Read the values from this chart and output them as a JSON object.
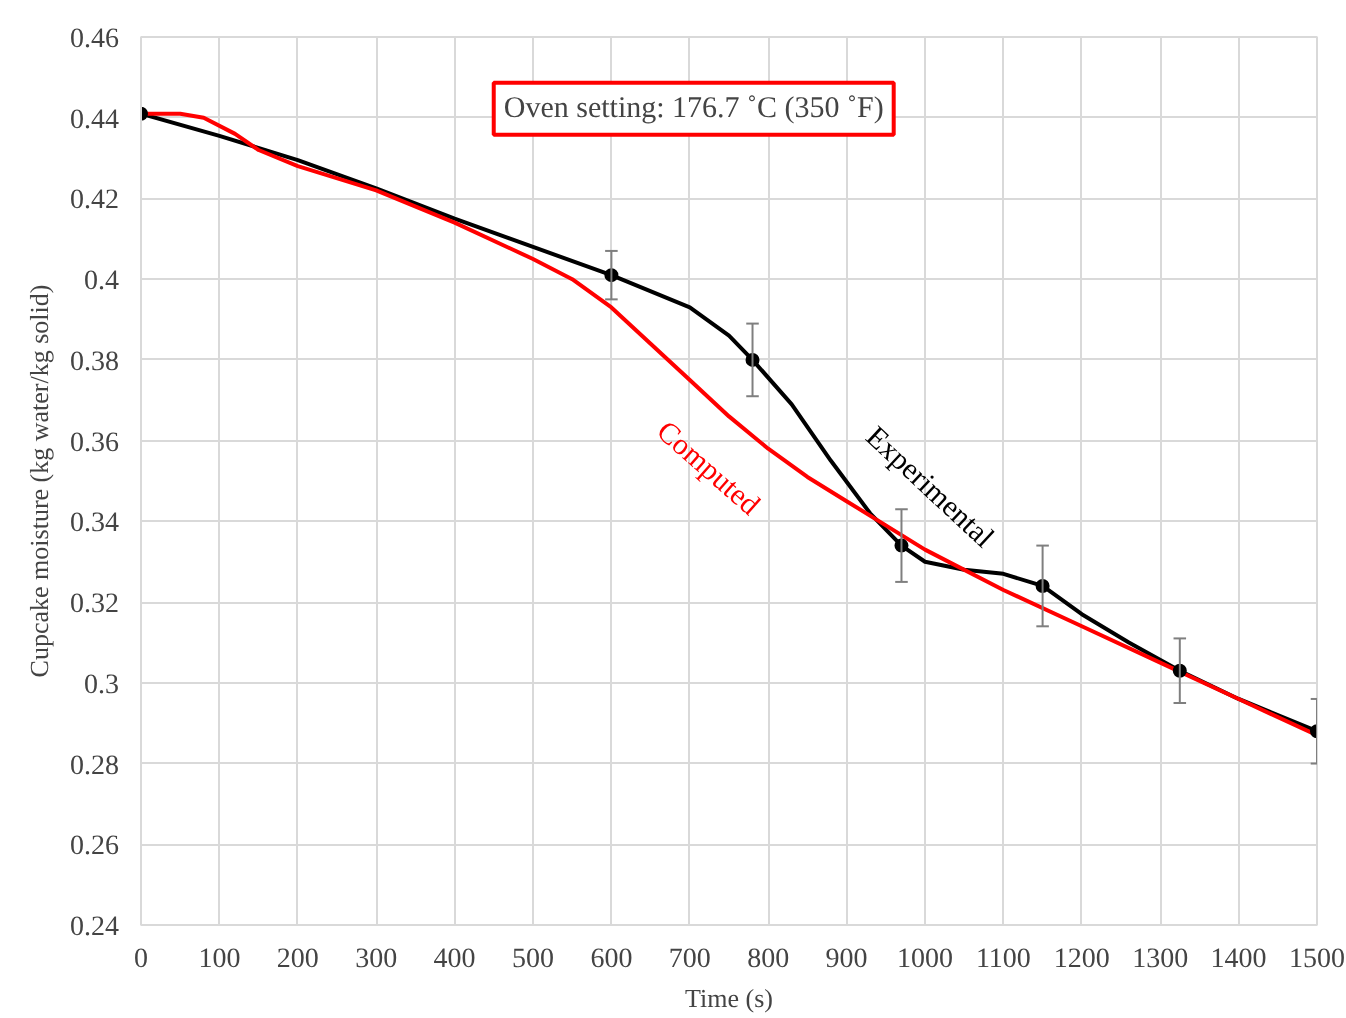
{
  "chart_data": {
    "type": "line",
    "xlabel": "Time (s)",
    "ylabel": "Cupcake moisture (kg water/kg solid)",
    "xlim": [
      0,
      1500
    ],
    "xticks": [
      0,
      100,
      200,
      300,
      400,
      500,
      600,
      700,
      800,
      900,
      1000,
      1100,
      1200,
      1300,
      1400,
      1500
    ],
    "ylim": [
      0.24,
      0.46
    ],
    "yticks": [
      0.24,
      0.26,
      0.28,
      0.3,
      0.32,
      0.34,
      0.36,
      0.38,
      0.4,
      0.42,
      0.44,
      0.46
    ],
    "grid": true,
    "line_style": "solid",
    "annotations": [
      "Oven setting: 176.7 ˚C (350 ˚F)"
    ],
    "series": [
      {
        "name": "Experimental",
        "color": "#000000",
        "x": [
          0,
          100,
          200,
          300,
          400,
          500,
          600,
          700,
          750,
          780,
          830,
          880,
          930,
          970,
          1000,
          1050,
          1100,
          1150,
          1200,
          1260,
          1325,
          1400,
          1500
        ],
        "values": [
          0.441,
          0.4355,
          0.4295,
          0.4225,
          0.415,
          0.408,
          0.401,
          0.393,
          0.386,
          0.38,
          0.369,
          0.355,
          0.342,
          0.334,
          0.33,
          0.328,
          0.327,
          0.324,
          0.317,
          0.31,
          0.303,
          0.296,
          0.288
        ]
      },
      {
        "type": "scatter",
        "marker": "circle",
        "color": "#000000",
        "x": [
          0,
          600,
          780,
          970,
          1150,
          1325,
          1500
        ],
        "values": [
          0.441,
          0.401,
          0.38,
          0.334,
          0.324,
          0.303,
          0.288
        ],
        "errors": [
          null,
          0.006,
          0.009,
          0.009,
          0.01,
          0.008,
          0.008
        ]
      },
      {
        "name": "Computed",
        "color": "#ff0000",
        "x": [
          0,
          50,
          80,
          120,
          150,
          200,
          300,
          400,
          500,
          550,
          600,
          650,
          700,
          750,
          800,
          850,
          900,
          950,
          1000,
          1100,
          1200,
          1300,
          1400,
          1500
        ],
        "values": [
          0.441,
          0.441,
          0.44,
          0.436,
          0.432,
          0.428,
          0.422,
          0.414,
          0.405,
          0.4,
          0.393,
          0.384,
          0.375,
          0.366,
          0.358,
          0.351,
          0.345,
          0.339,
          0.333,
          0.323,
          0.314,
          0.305,
          0.296,
          0.287
        ]
      }
    ]
  }
}
